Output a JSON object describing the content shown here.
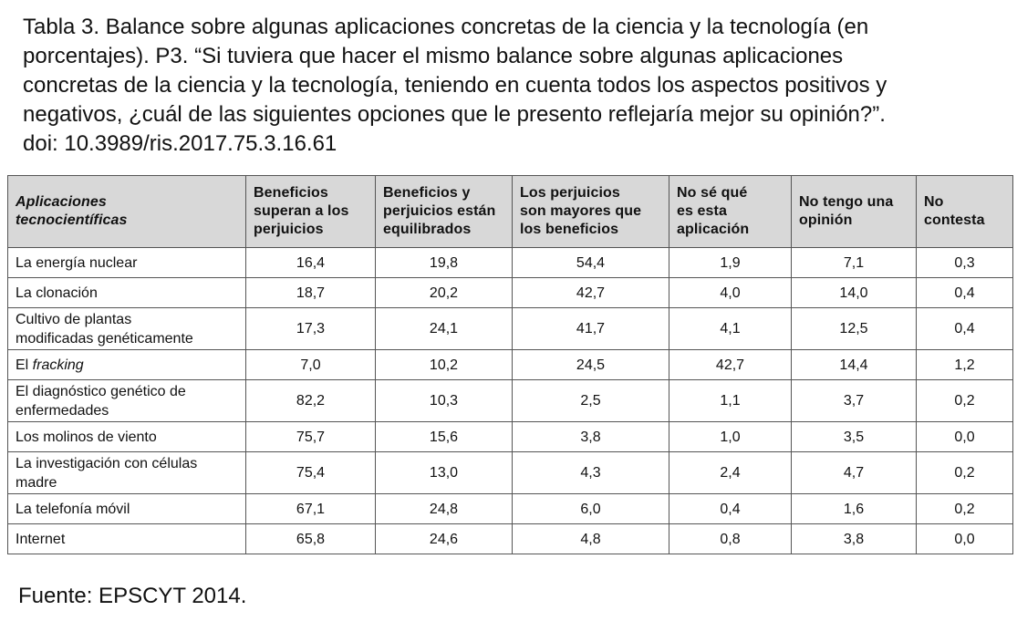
{
  "caption": {
    "lines": [
      "Tabla 3. Balance sobre algunas aplicaciones concretas de la ciencia y la tecnología (en",
      "porcentajes). P3. “Si tuviera que hacer el mismo balance sobre algunas aplicaciones",
      "concretas de la ciencia y la tecnología, teniendo en cuenta todos los aspectos positivos y",
      "negativos, ¿cuál de las siguientes opciones que le presento reflejaría mejor su opinión?”.",
      "doi: 10.3989/ris.2017.75.3.16.61"
    ]
  },
  "table": {
    "headers": [
      [
        "Aplicaciones",
        "tecnocientíficas"
      ],
      [
        "Beneficios",
        "superan a los",
        "perjuicios"
      ],
      [
        "Beneficios y",
        "perjuicios están",
        "equilibrados"
      ],
      [
        "Los perjuicios",
        "son mayores que",
        "los beneficios"
      ],
      [
        "No sé qué",
        "es esta",
        "aplicación"
      ],
      [
        "No tengo una",
        "opinión"
      ],
      [
        "No",
        "contesta"
      ]
    ],
    "rows": [
      {
        "label": [
          "La energía nuclear"
        ],
        "values": [
          "16,4",
          "19,8",
          "54,4",
          "1,9",
          "7,1",
          "0,3"
        ]
      },
      {
        "label": [
          "La clonación"
        ],
        "values": [
          "18,7",
          "20,2",
          "42,7",
          "4,0",
          "14,0",
          "0,4"
        ]
      },
      {
        "label": [
          "Cultivo de plantas",
          "modificadas genéticamente"
        ],
        "values": [
          "17,3",
          "24,1",
          "41,7",
          "4,1",
          "12,5",
          "0,4"
        ]
      },
      {
        "label_prefix": "El ",
        "label_italic": "fracking",
        "values": [
          "7,0",
          "10,2",
          "24,5",
          "42,7",
          "14,4",
          "1,2"
        ]
      },
      {
        "label": [
          "El diagnóstico genético de",
          "enfermedades"
        ],
        "values": [
          "82,2",
          "10,3",
          "2,5",
          "1,1",
          "3,7",
          "0,2"
        ]
      },
      {
        "label": [
          "Los molinos de viento"
        ],
        "values": [
          "75,7",
          "15,6",
          "3,8",
          "1,0",
          "3,5",
          "0,0"
        ]
      },
      {
        "label": [
          "La investigación con células",
          "madre"
        ],
        "values": [
          "75,4",
          "13,0",
          "4,3",
          "2,4",
          "4,7",
          "0,2"
        ]
      },
      {
        "label": [
          "La telefonía móvil"
        ],
        "values": [
          "67,1",
          "24,8",
          "6,0",
          "0,4",
          "1,6",
          "0,2"
        ]
      },
      {
        "label": [
          "Internet"
        ],
        "values": [
          "65,8",
          "24,6",
          "4,8",
          "0,8",
          "3,8",
          "0,0"
        ]
      }
    ]
  },
  "source": "Fuente: EPSCYT 2014.",
  "colors": {
    "header_bg": "#d8d8d8",
    "border": "#555555",
    "text": "#111111"
  }
}
